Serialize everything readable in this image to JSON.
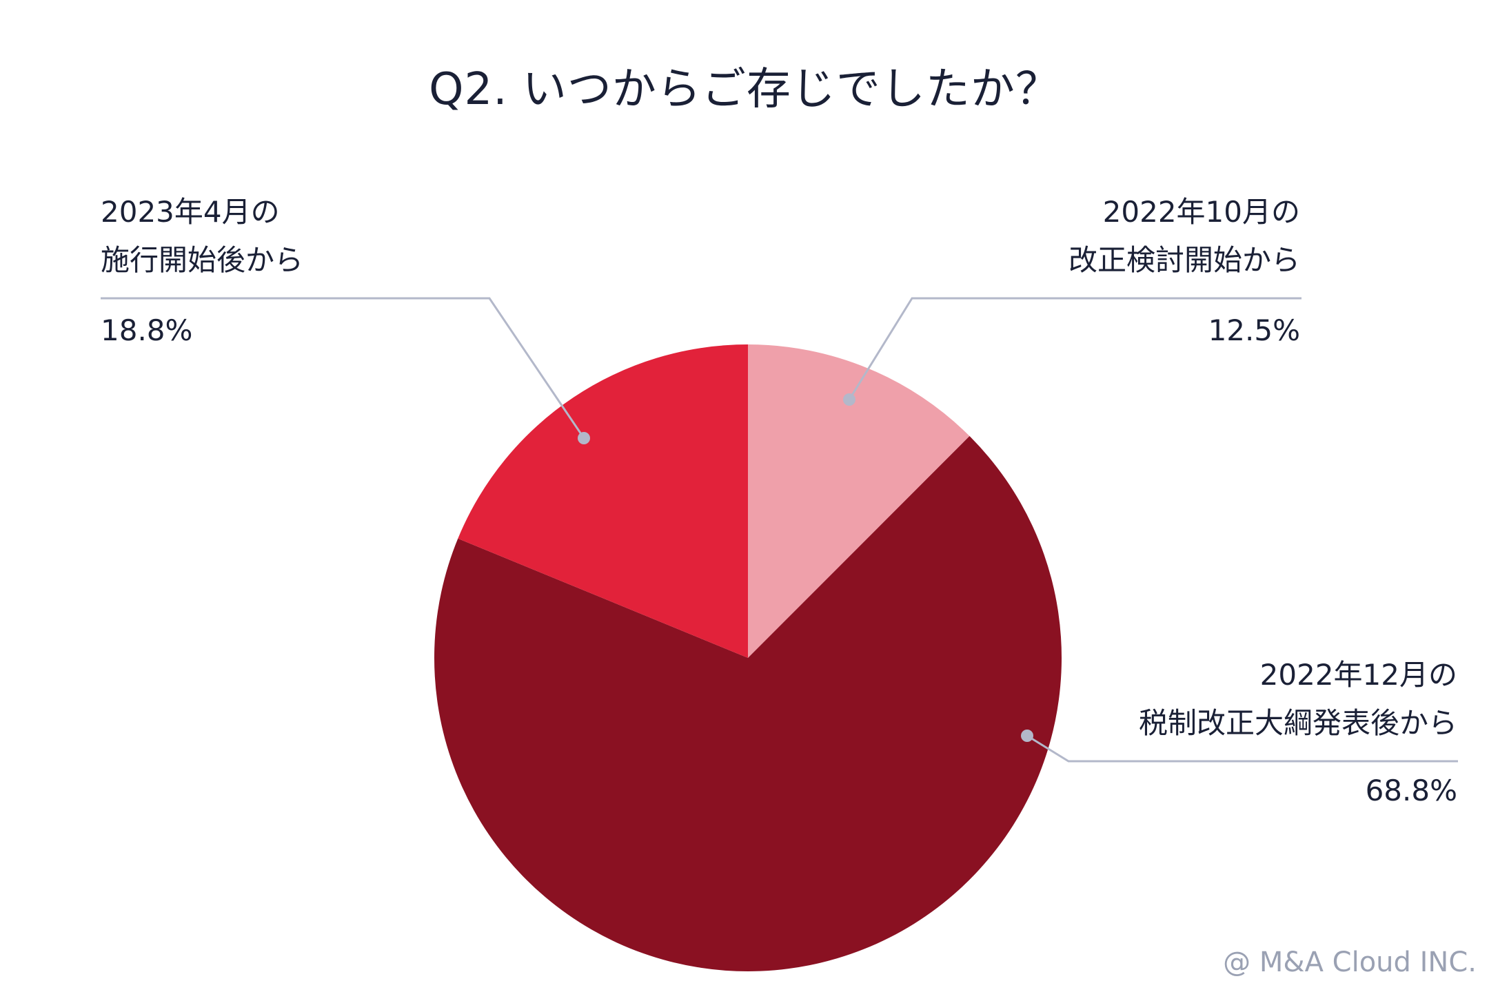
{
  "chart_data": {
    "type": "pie",
    "title": "Q2. いつからご存じでしたか？",
    "slices": [
      {
        "label_line1": "2022年10月の",
        "label_line2": "改正検討開始から",
        "value": 12.5,
        "value_label": "12.5%",
        "color": "#EFA0AA"
      },
      {
        "label_line1": "2022年12月の",
        "label_line2": "税制改正大綱発表後から",
        "value": 68.8,
        "value_label": "68.8%",
        "color": "#8A1122"
      },
      {
        "label_line1": "2023年4月の",
        "label_line2": "施行開始後から",
        "value": 18.8,
        "value_label": "18.8%",
        "color": "#E2223A"
      }
    ],
    "start_angle": "12 o'clock",
    "direction": "clockwise",
    "leader_color": "#B3B8CA"
  },
  "footer": {
    "copyright": "@ M&A Cloud INC."
  }
}
